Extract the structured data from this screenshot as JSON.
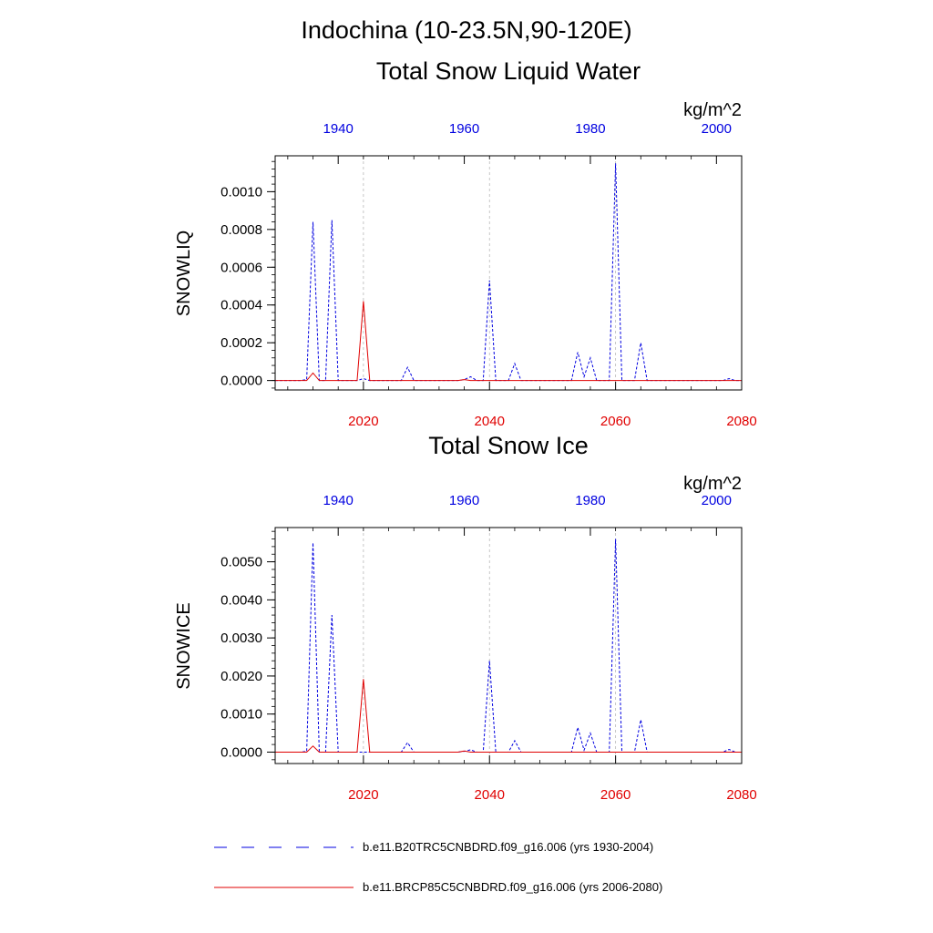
{
  "page": {
    "title": "Indochina (10-23.5N,90-120E)"
  },
  "legend": {
    "items": [
      {
        "label": "b.e11.B20TRC5CNBDRD.f09_g16.006 (yrs 1930-2004)",
        "color": "#0000e0",
        "style": "dashed"
      },
      {
        "label": "b.e11.BRCP85C5CNBDRD.f09_g16.006 (yrs 2006-2080)",
        "color": "#e00000",
        "style": "solid"
      }
    ]
  },
  "chart_data": [
    {
      "type": "line",
      "title": "Total Snow Liquid Water",
      "units": "kg/m^2",
      "ylabel": "SNOWLIQ",
      "ylim": [
        -5e-05,
        0.00119
      ],
      "yticks": [
        0.0,
        0.0002,
        0.0004,
        0.0006,
        0.0008,
        0.001
      ],
      "ytick_labels": [
        "0.0000",
        "0.0002",
        "0.0004",
        "0.0006",
        "0.0008",
        "0.0010"
      ],
      "x_bottom": {
        "range": [
          2006,
          2080
        ],
        "ticks": [
          2020,
          2040,
          2060,
          2080
        ],
        "color": "#e00000"
      },
      "x_top": {
        "range": [
          1930,
          2004
        ],
        "ticks": [
          1940,
          1960,
          1980,
          2000
        ],
        "color": "#0000e0"
      },
      "vlines": [
        2020,
        2040,
        2060
      ],
      "series": [
        {
          "name": "b.e11.B20TRC5CNBDRD.f09_g16.006 (yrs 1930-2004)",
          "style": "dashed",
          "color": "#0000e0",
          "x": [
            1930,
            1931,
            1932,
            1933,
            1934,
            1935,
            1936,
            1937,
            1938,
            1939,
            1940,
            1941,
            1942,
            1943,
            1944,
            1945,
            1946,
            1947,
            1948,
            1949,
            1950,
            1951,
            1952,
            1953,
            1954,
            1955,
            1956,
            1957,
            1958,
            1959,
            1960,
            1961,
            1962,
            1963,
            1964,
            1965,
            1966,
            1967,
            1968,
            1969,
            1970,
            1971,
            1972,
            1973,
            1974,
            1975,
            1976,
            1977,
            1978,
            1979,
            1980,
            1981,
            1982,
            1983,
            1984,
            1985,
            1986,
            1987,
            1988,
            1989,
            1990,
            1991,
            1992,
            1993,
            1994,
            1995,
            1996,
            1997,
            1998,
            1999,
            2000,
            2001,
            2002,
            2003,
            2004
          ],
          "y": [
            0,
            0,
            0,
            0,
            0,
            5e-06,
            0.00084,
            0,
            0,
            0.00085,
            0,
            0,
            0,
            0,
            1e-05,
            0,
            0,
            0,
            0,
            0,
            0,
            7e-05,
            0,
            0,
            0,
            0,
            0,
            0,
            0,
            0,
            5e-06,
            2e-05,
            0,
            0,
            0.00053,
            0,
            0,
            0,
            9e-05,
            0,
            0,
            0,
            0,
            0,
            0,
            0,
            0,
            0,
            0.00015,
            2e-05,
            0.00012,
            0,
            0,
            0,
            0.00115,
            0,
            0,
            0,
            0.0002,
            0,
            0,
            0,
            0,
            0,
            0,
            0,
            0,
            0,
            0,
            0,
            0,
            0,
            1e-05,
            0,
            0
          ]
        },
        {
          "name": "b.e11.BRCP85C5CNBDRD.f09_g16.006 (yrs 2006-2080)",
          "style": "solid",
          "color": "#e00000",
          "x": [
            2006,
            2007,
            2008,
            2009,
            2010,
            2011,
            2012,
            2013,
            2014,
            2015,
            2016,
            2017,
            2018,
            2019,
            2020,
            2021,
            2022,
            2023,
            2024,
            2025,
            2026,
            2027,
            2028,
            2029,
            2030,
            2031,
            2032,
            2033,
            2034,
            2035,
            2036,
            2037,
            2038,
            2039,
            2040,
            2041,
            2042,
            2043,
            2044,
            2045,
            2046,
            2047,
            2048,
            2049,
            2050,
            2051,
            2052,
            2053,
            2054,
            2055,
            2056,
            2057,
            2058,
            2059,
            2060,
            2061,
            2062,
            2063,
            2064,
            2065,
            2066,
            2067,
            2068,
            2069,
            2070,
            2071,
            2072,
            2073,
            2074,
            2075,
            2076,
            2077,
            2078,
            2079,
            2080
          ],
          "y": [
            0,
            0,
            0,
            0,
            0,
            0,
            4e-05,
            0,
            0,
            0,
            0,
            0,
            0,
            0,
            0.00042,
            0,
            0,
            0,
            0,
            0,
            0,
            0,
            0,
            0,
            0,
            0,
            0,
            0,
            0,
            0,
            5e-06,
            0,
            0,
            0,
            0,
            0,
            0,
            0,
            0,
            0,
            0,
            0,
            0,
            0,
            0,
            0,
            0,
            0,
            0,
            0,
            0,
            0,
            0,
            0,
            0,
            0,
            0,
            0,
            0,
            0,
            0,
            0,
            0,
            0,
            0,
            0,
            0,
            0,
            0,
            0,
            0,
            0,
            0,
            0,
            0
          ]
        }
      ]
    },
    {
      "type": "line",
      "title": "Total Snow Ice",
      "units": "kg/m^2",
      "ylabel": "SNOWICE",
      "ylim": [
        -0.0003,
        0.0059
      ],
      "yticks": [
        0.0,
        0.001,
        0.002,
        0.003,
        0.004,
        0.005
      ],
      "ytick_labels": [
        "0.0000",
        "0.0010",
        "0.0020",
        "0.0030",
        "0.0040",
        "0.0050"
      ],
      "x_bottom": {
        "range": [
          2006,
          2080
        ],
        "ticks": [
          2020,
          2040,
          2060,
          2080
        ],
        "color": "#e00000"
      },
      "x_top": {
        "range": [
          1930,
          2004
        ],
        "ticks": [
          1940,
          1960,
          1980,
          2000
        ],
        "color": "#0000e0"
      },
      "vlines": [
        2020,
        2040,
        2060
      ],
      "series": [
        {
          "name": "b.e11.B20TRC5CNBDRD.f09_g16.006 (yrs 1930-2004)",
          "style": "dashed",
          "color": "#0000e0",
          "x": [
            1930,
            1931,
            1932,
            1933,
            1934,
            1935,
            1936,
            1937,
            1938,
            1939,
            1940,
            1941,
            1942,
            1943,
            1944,
            1945,
            1946,
            1947,
            1948,
            1949,
            1950,
            1951,
            1952,
            1953,
            1954,
            1955,
            1956,
            1957,
            1958,
            1959,
            1960,
            1961,
            1962,
            1963,
            1964,
            1965,
            1966,
            1967,
            1968,
            1969,
            1970,
            1971,
            1972,
            1973,
            1974,
            1975,
            1976,
            1977,
            1978,
            1979,
            1980,
            1981,
            1982,
            1983,
            1984,
            1985,
            1986,
            1987,
            1988,
            1989,
            1990,
            1991,
            1992,
            1993,
            1994,
            1995,
            1996,
            1997,
            1998,
            1999,
            2000,
            2001,
            2002,
            2003,
            2004
          ],
          "y": [
            0,
            0,
            0,
            0,
            0,
            2e-05,
            0.0055,
            0,
            0,
            0.0036,
            0,
            0,
            0,
            0,
            0,
            0,
            0,
            0,
            0,
            0,
            0,
            0.00025,
            0,
            0,
            0,
            0,
            0,
            0,
            0,
            0,
            2e-05,
            6e-05,
            0,
            0,
            0.0024,
            0,
            0,
            0,
            0.0003,
            0,
            0,
            0,
            0,
            0,
            0,
            0,
            0,
            0,
            0.00065,
            5e-05,
            0.0005,
            0,
            0,
            0,
            0.0056,
            0,
            0,
            0,
            0.00085,
            0,
            0,
            0,
            0,
            0,
            0,
            0,
            0,
            0,
            0,
            0,
            0,
            0,
            7e-05,
            0,
            0
          ]
        },
        {
          "name": "b.e11.BRCP85C5CNBDRD.f09_g16.006 (yrs 2006-2080)",
          "style": "solid",
          "color": "#e00000",
          "x": [
            2006,
            2007,
            2008,
            2009,
            2010,
            2011,
            2012,
            2013,
            2014,
            2015,
            2016,
            2017,
            2018,
            2019,
            2020,
            2021,
            2022,
            2023,
            2024,
            2025,
            2026,
            2027,
            2028,
            2029,
            2030,
            2031,
            2032,
            2033,
            2034,
            2035,
            2036,
            2037,
            2038,
            2039,
            2040,
            2041,
            2042,
            2043,
            2044,
            2045,
            2046,
            2047,
            2048,
            2049,
            2050,
            2051,
            2052,
            2053,
            2054,
            2055,
            2056,
            2057,
            2058,
            2059,
            2060,
            2061,
            2062,
            2063,
            2064,
            2065,
            2066,
            2067,
            2068,
            2069,
            2070,
            2071,
            2072,
            2073,
            2074,
            2075,
            2076,
            2077,
            2078,
            2079,
            2080
          ],
          "y": [
            0,
            0,
            0,
            0,
            0,
            0,
            0.00016,
            0,
            0,
            0,
            0,
            0,
            0,
            0,
            0.00192,
            0,
            0,
            0,
            0,
            0,
            0,
            0,
            0,
            0,
            0,
            0,
            0,
            0,
            0,
            0,
            3e-05,
            0,
            0,
            0,
            0,
            0,
            0,
            0,
            0,
            0,
            0,
            0,
            0,
            0,
            0,
            0,
            0,
            0,
            0,
            0,
            0,
            0,
            0,
            0,
            0,
            0,
            0,
            0,
            0,
            0,
            0,
            0,
            0,
            0,
            0,
            0,
            0,
            0,
            0,
            0,
            0,
            0,
            0,
            0,
            0
          ]
        }
      ]
    }
  ]
}
